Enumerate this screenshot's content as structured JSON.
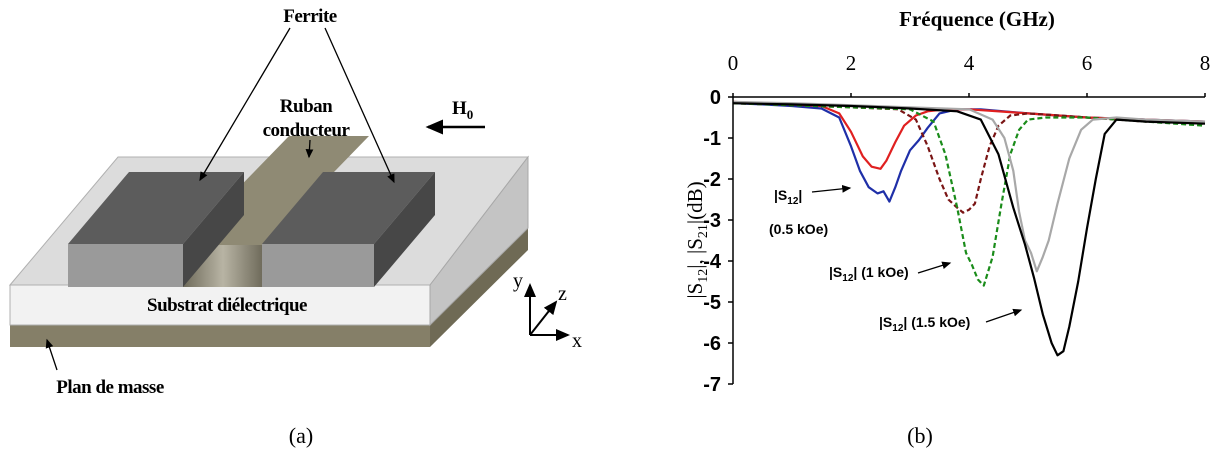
{
  "panel_a": {
    "labels": {
      "ferrite": "Ferrite",
      "ruban_line1": "Ruban",
      "ruban_line2": "conducteur",
      "h0_main": "H",
      "h0_sub": "0",
      "substrat": "Substrat diélectrique",
      "plan": "Plan de masse",
      "axis_y": "y",
      "axis_z": "z",
      "axis_x": "x"
    },
    "caption": "(a)",
    "colors": {
      "ferrite_top": "#5c5c5c",
      "ferrite_front": "#9a9a9a",
      "ferrite_side": "#474747",
      "ribbon": "#8f8a74",
      "substrate_top": "#dcdcdc",
      "substrate_front": "#f2f2f2",
      "ground": "#857f68"
    }
  },
  "panel_b": {
    "caption": "(b)",
    "annotations": {
      "ann1_line1": "|S",
      "ann1_sub": "12",
      "ann1_line1_end": "|",
      "ann1_line2": "(0.5 kOe)",
      "ann2_pre": "|S",
      "ann2_sub": "12",
      "ann2_post": "| (1 kOe)",
      "ann3_pre": "|S",
      "ann3_sub": "12",
      "ann3_post": "| (1.5 kOe)"
    },
    "axis_title_y": {
      "p1": "|S",
      "s1": "12",
      "p2": "|, |S",
      "s2": "21",
      "p3": "|(dB)"
    }
  },
  "chart_data": {
    "type": "line",
    "title": "",
    "xlabel": "Fréquence (GHz)",
    "ylabel": "|S12|, |S21|(dB)",
    "xlim": [
      0,
      8
    ],
    "ylim": [
      -7,
      0
    ],
    "x_ticks": [
      "0",
      "2",
      "4",
      "6",
      "8"
    ],
    "y_ticks": [
      "0",
      "-1",
      "-2",
      "-3",
      "-4",
      "-5",
      "-6",
      "-7"
    ],
    "x_axis_position": "top",
    "grid": false,
    "series": [
      {
        "color": "#1f2fa8",
        "dash": "solid",
        "x": [
          0,
          0.5,
          1,
          1.5,
          1.8,
          2.0,
          2.15,
          2.3,
          2.45,
          2.55,
          2.65,
          2.75,
          2.85,
          3.0,
          3.15,
          3.3,
          3.5,
          3.8,
          4.2,
          5,
          6,
          7,
          8
        ],
        "y": [
          -0.15,
          -0.18,
          -0.22,
          -0.28,
          -0.5,
          -1.2,
          -1.8,
          -2.2,
          -2.35,
          -2.3,
          -2.55,
          -2.2,
          -1.8,
          -1.3,
          -1.05,
          -0.75,
          -0.4,
          -0.3,
          -0.3,
          -0.4,
          -0.5,
          -0.55,
          -0.6
        ]
      },
      {
        "color": "#e02020",
        "dash": "solid",
        "x": [
          0,
          0.5,
          1,
          1.5,
          1.8,
          2.0,
          2.2,
          2.35,
          2.5,
          2.6,
          2.75,
          2.9,
          3.1,
          3.3,
          3.6,
          4.0,
          5,
          6,
          7,
          8
        ],
        "y": [
          -0.12,
          -0.15,
          -0.18,
          -0.22,
          -0.4,
          -0.85,
          -1.45,
          -1.7,
          -1.75,
          -1.55,
          -1.1,
          -0.7,
          -0.45,
          -0.35,
          -0.3,
          -0.3,
          -0.4,
          -0.5,
          -0.55,
          -0.6
        ]
      },
      {
        "color": "#7a1515",
        "dash": "dash",
        "x": [
          0,
          1,
          2,
          2.8,
          3.1,
          3.3,
          3.5,
          3.65,
          3.8,
          3.9,
          4.0,
          4.1,
          4.2,
          4.35,
          4.5,
          4.7,
          5.0,
          6,
          7,
          8
        ],
        "y": [
          -0.15,
          -0.2,
          -0.25,
          -0.3,
          -0.55,
          -1.2,
          -2.0,
          -2.5,
          -2.7,
          -2.82,
          -2.75,
          -2.6,
          -2.0,
          -1.2,
          -0.7,
          -0.45,
          -0.4,
          -0.5,
          -0.6,
          -0.65
        ]
      },
      {
        "color": "#1a8c1a",
        "dash": "dash",
        "x": [
          0,
          1,
          2,
          3,
          3.4,
          3.6,
          3.8,
          3.95,
          4.05,
          4.15,
          4.25,
          4.4,
          4.55,
          4.7,
          4.85,
          5.0,
          5.3,
          6,
          7,
          8
        ],
        "y": [
          -0.15,
          -0.2,
          -0.25,
          -0.3,
          -0.6,
          -1.4,
          -2.7,
          -3.8,
          -4.1,
          -4.45,
          -4.6,
          -3.9,
          -2.6,
          -1.4,
          -0.8,
          -0.55,
          -0.5,
          -0.5,
          -0.6,
          -0.7
        ]
      },
      {
        "color": "#a8a8a8",
        "dash": "solid",
        "x": [
          0,
          1,
          2,
          3,
          4,
          4.4,
          4.6,
          4.75,
          4.85,
          4.95,
          5.05,
          5.15,
          5.25,
          5.35,
          5.5,
          5.7,
          5.9,
          6.1,
          6.5,
          7,
          8
        ],
        "y": [
          -0.12,
          -0.15,
          -0.2,
          -0.25,
          -0.3,
          -0.55,
          -1.0,
          -1.8,
          -2.8,
          -3.5,
          -3.8,
          -4.25,
          -3.9,
          -3.5,
          -2.6,
          -1.5,
          -0.8,
          -0.55,
          -0.5,
          -0.55,
          -0.6
        ]
      },
      {
        "color": "#000000",
        "dash": "solid",
        "x": [
          0,
          1,
          2,
          3,
          3.8,
          4.2,
          4.5,
          4.75,
          4.95,
          5.1,
          5.25,
          5.4,
          5.5,
          5.6,
          5.7,
          5.85,
          6.0,
          6.15,
          6.3,
          6.5,
          7,
          8
        ],
        "y": [
          -0.15,
          -0.18,
          -0.22,
          -0.28,
          -0.35,
          -0.55,
          -1.4,
          -2.7,
          -3.6,
          -4.4,
          -5.3,
          -6.0,
          -6.3,
          -6.2,
          -5.6,
          -4.5,
          -3.2,
          -2.0,
          -0.9,
          -0.55,
          -0.6,
          -0.65
        ]
      }
    ]
  }
}
